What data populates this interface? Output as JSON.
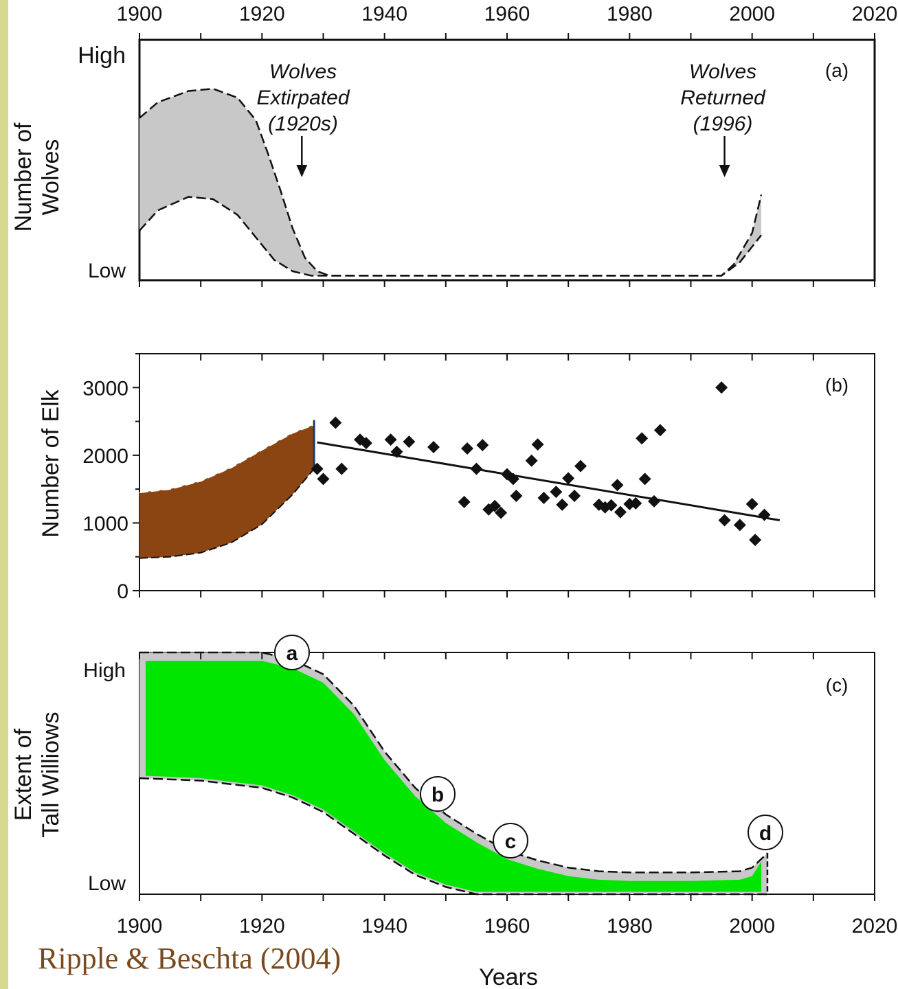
{
  "citation": "Ripple & Beschta (2004)",
  "colors": {
    "page_border": "#d8d890",
    "band_grey": "#c8c8c8",
    "elk_band": "#8b4513",
    "willow_fill": "#00e600",
    "citation_text": "#7a4a1e"
  },
  "chart_data": [
    {
      "type": "area",
      "panel": "(a)",
      "ylabel": [
        "Number of",
        "Wolves"
      ],
      "xlim": [
        1900,
        2020
      ],
      "x_ticks": [
        1900,
        1920,
        1940,
        1960,
        1980,
        2000,
        2020
      ],
      "y_ticks_text": [
        "High",
        "Low"
      ],
      "band_upper": [
        [
          1900,
          0.72
        ],
        [
          1903,
          0.79
        ],
        [
          1908,
          0.84
        ],
        [
          1912,
          0.85
        ],
        [
          1916,
          0.81
        ],
        [
          1919,
          0.71
        ],
        [
          1921,
          0.56
        ],
        [
          1923,
          0.4
        ],
        [
          1925,
          0.23
        ],
        [
          1927,
          0.1
        ],
        [
          1929,
          0.04
        ],
        [
          1931,
          0.02
        ],
        [
          1995,
          0.02
        ],
        [
          1997,
          0.07
        ],
        [
          2000,
          0.21
        ],
        [
          2001.5,
          0.38
        ]
      ],
      "band_lower": [
        [
          1900,
          0.22
        ],
        [
          1903,
          0.31
        ],
        [
          1908,
          0.37
        ],
        [
          1912,
          0.36
        ],
        [
          1916,
          0.29
        ],
        [
          1919,
          0.19
        ],
        [
          1922,
          0.09
        ],
        [
          1925,
          0.04
        ],
        [
          1928,
          0.02
        ],
        [
          1995,
          0.02
        ],
        [
          1998,
          0.08
        ],
        [
          2001.5,
          0.2
        ]
      ],
      "annotations": [
        {
          "x": 1926.5,
          "lines": [
            "Wolves",
            "Extirpated",
            "(1920s)"
          ]
        },
        {
          "x": 1995.5,
          "lines": [
            "Wolves",
            "Returned",
            "(1996)"
          ]
        }
      ]
    },
    {
      "type": "scatter",
      "panel": "(b)",
      "ylabel": "Number of Elk",
      "xlim": [
        1900,
        2020
      ],
      "ylim": [
        0,
        3500
      ],
      "y_ticks": [
        0,
        1000,
        2000,
        3000
      ],
      "band_upper": [
        [
          1900,
          1450
        ],
        [
          1905,
          1500
        ],
        [
          1910,
          1620
        ],
        [
          1915,
          1820
        ],
        [
          1920,
          2080
        ],
        [
          1925,
          2330
        ],
        [
          1928.5,
          2450
        ]
      ],
      "band_lower": [
        [
          1900,
          480
        ],
        [
          1905,
          500
        ],
        [
          1910,
          560
        ],
        [
          1915,
          710
        ],
        [
          1920,
          980
        ],
        [
          1925,
          1420
        ],
        [
          1928.5,
          1800
        ]
      ],
      "points": [
        [
          1929,
          1800
        ],
        [
          1930,
          1650
        ],
        [
          1932,
          2480
        ],
        [
          1933,
          1800
        ],
        [
          1936,
          2230
        ],
        [
          1937,
          2180
        ],
        [
          1941,
          2230
        ],
        [
          1942,
          2050
        ],
        [
          1944,
          2200
        ],
        [
          1948,
          2120
        ],
        [
          1953,
          1310
        ],
        [
          1953.5,
          2100
        ],
        [
          1955,
          1800
        ],
        [
          1956,
          2150
        ],
        [
          1957,
          1200
        ],
        [
          1958,
          1250
        ],
        [
          1959,
          1150
        ],
        [
          1960,
          1720
        ],
        [
          1961,
          1650
        ],
        [
          1961.5,
          1400
        ],
        [
          1964,
          1920
        ],
        [
          1965,
          2160
        ],
        [
          1966,
          1370
        ],
        [
          1968,
          1460
        ],
        [
          1969,
          1270
        ],
        [
          1970,
          1660
        ],
        [
          1971,
          1400
        ],
        [
          1972,
          1840
        ],
        [
          1975,
          1270
        ],
        [
          1976,
          1230
        ],
        [
          1977,
          1260
        ],
        [
          1978,
          1560
        ],
        [
          1978.5,
          1160
        ],
        [
          1980,
          1280
        ],
        [
          1981,
          1290
        ],
        [
          1982,
          2250
        ],
        [
          1982.5,
          1650
        ],
        [
          1984,
          1320
        ],
        [
          1985,
          2370
        ],
        [
          1995,
          3000
        ],
        [
          1995.5,
          1040
        ],
        [
          1998,
          970
        ],
        [
          2000,
          1280
        ],
        [
          2000.5,
          750
        ],
        [
          2002,
          1120
        ]
      ],
      "trend": [
        [
          1929,
          2190
        ],
        [
          2004.5,
          1040
        ]
      ]
    },
    {
      "type": "area",
      "panel": "(c)",
      "ylabel": [
        "Extent of",
        "Tall Williows"
      ],
      "xlabel": "Years",
      "xlim": [
        1900,
        2020
      ],
      "x_ticks": [
        1900,
        1920,
        1940,
        1960,
        1980,
        2000,
        2020
      ],
      "y_ticks_text": [
        "High",
        "Low"
      ],
      "band_upper": [
        [
          1900,
          1.0
        ],
        [
          1920,
          1.0
        ],
        [
          1925,
          0.97
        ],
        [
          1930,
          0.91
        ],
        [
          1935,
          0.78
        ],
        [
          1940,
          0.59
        ],
        [
          1945,
          0.44
        ],
        [
          1950,
          0.33
        ],
        [
          1955,
          0.25
        ],
        [
          1960,
          0.18
        ],
        [
          1965,
          0.14
        ],
        [
          1970,
          0.11
        ],
        [
          1975,
          0.095
        ],
        [
          1980,
          0.09
        ],
        [
          1990,
          0.09
        ],
        [
          1998,
          0.095
        ],
        [
          2000,
          0.11
        ],
        [
          2002.5,
          0.17
        ]
      ],
      "band_lower": [
        [
          1900,
          0.48
        ],
        [
          1910,
          0.47
        ],
        [
          1920,
          0.44
        ],
        [
          1925,
          0.4
        ],
        [
          1930,
          0.34
        ],
        [
          1935,
          0.25
        ],
        [
          1940,
          0.16
        ],
        [
          1945,
          0.08
        ],
        [
          1950,
          0.03
        ],
        [
          1955,
          0.0
        ],
        [
          2002.5,
          0.0
        ]
      ],
      "labels": [
        {
          "tag": "a",
          "x": 1925,
          "y": 1.04
        },
        {
          "tag": "b",
          "x": 1948.5,
          "y": 0.4
        },
        {
          "tag": "c",
          "x": 1960.5,
          "y": 0.21
        },
        {
          "tag": "d",
          "x": 2002,
          "y": 0.24
        }
      ]
    }
  ]
}
